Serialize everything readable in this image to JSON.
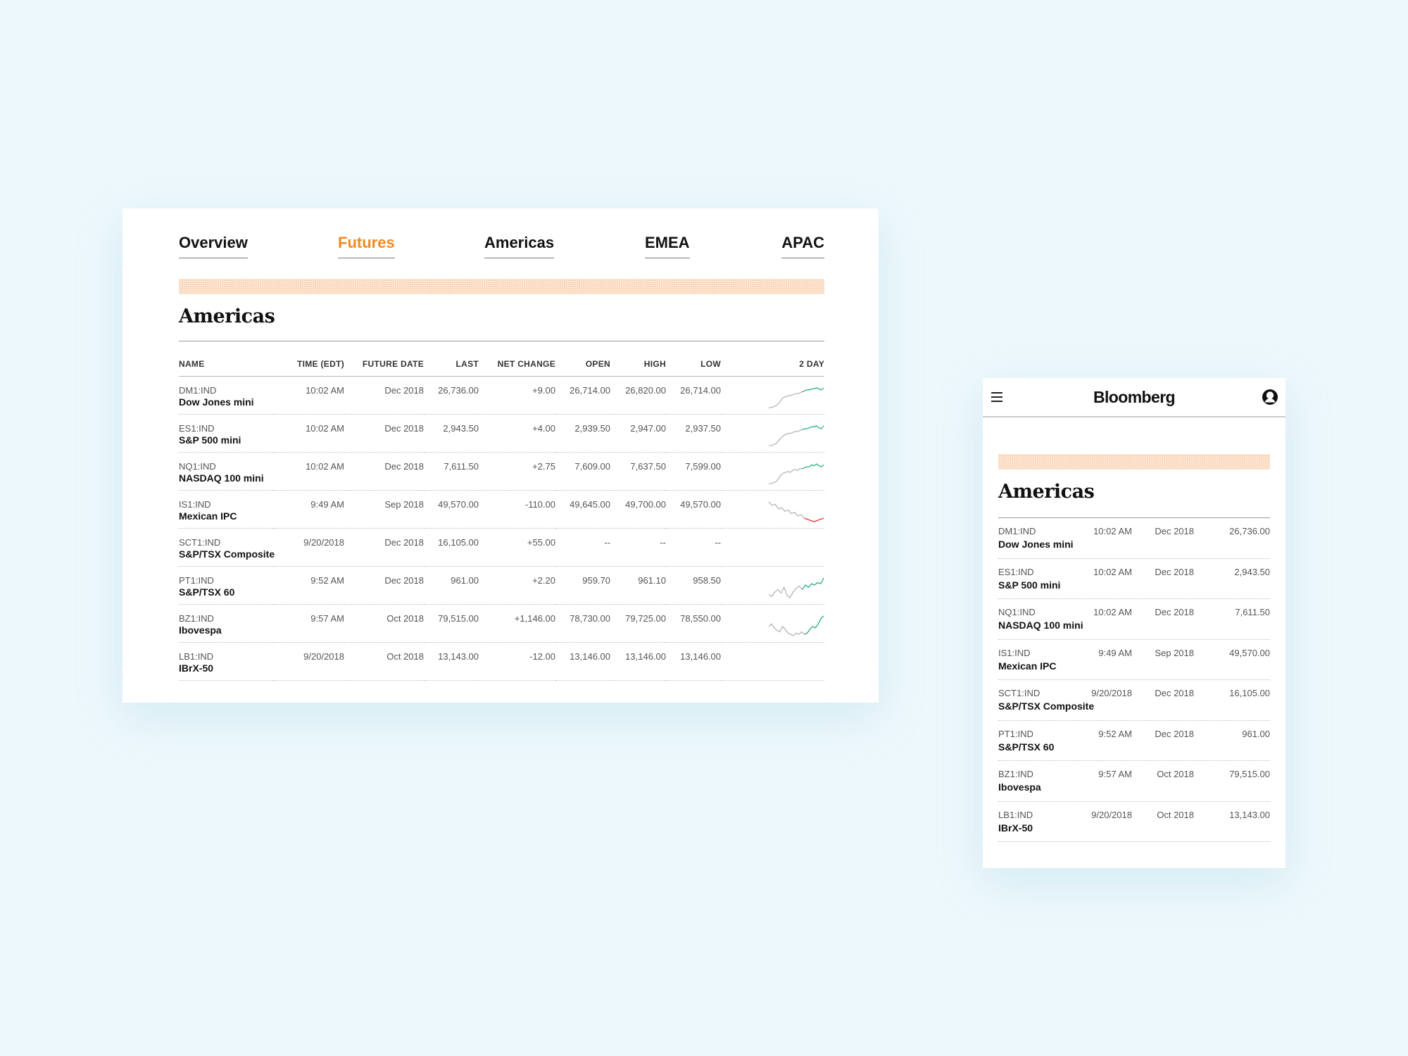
{
  "desktop": {
    "tabs": [
      {
        "label": "Overview",
        "active": false
      },
      {
        "label": "Futures",
        "active": true
      },
      {
        "label": "Americas",
        "active": false
      },
      {
        "label": "EMEA",
        "active": false
      },
      {
        "label": "APAC",
        "active": false
      }
    ],
    "section_title": "Americas",
    "columns": {
      "name": "NAME",
      "time": "TIME (EDT)",
      "future_date": "FUTURE DATE",
      "last": "LAST",
      "net_change": "NET CHANGE",
      "open": "OPEN",
      "high": "HIGH",
      "low": "LOW",
      "chart": "2 DAY"
    },
    "rows": [
      {
        "ticker": "DM1:IND",
        "name": "Dow Jones mini",
        "time": "10:02 AM",
        "future_date": "Dec 2018",
        "last": "26,736.00",
        "net_change": "+9.00",
        "open": "26,714.00",
        "high": "26,820.00",
        "low": "26,714.00",
        "trend": "up",
        "chart": [
          2,
          2,
          3,
          4,
          6,
          9,
          12,
          13,
          14,
          14,
          15,
          16,
          16,
          17,
          18,
          19,
          20,
          20,
          21,
          21,
          22,
          21,
          20,
          22
        ]
      },
      {
        "ticker": "ES1:IND",
        "name": "S&P 500 mini",
        "time": "10:02 AM",
        "future_date": "Dec 2018",
        "last": "2,943.50",
        "net_change": "+4.00",
        "open": "2,939.50",
        "high": "2,947.00",
        "low": "2,937.50",
        "trend": "up",
        "chart": [
          2,
          2,
          3,
          4,
          7,
          10,
          12,
          14,
          15,
          15,
          16,
          17,
          17,
          18,
          19,
          20,
          20,
          21,
          22,
          22,
          23,
          21,
          20,
          23
        ]
      },
      {
        "ticker": "NQ1:IND",
        "name": "NASDAQ 100 mini",
        "time": "10:02 AM",
        "future_date": "Dec 2018",
        "last": "7,611.50",
        "net_change": "+2.75",
        "open": "7,609.00",
        "high": "7,637.50",
        "low": "7,599.00",
        "trend": "up",
        "chart": [
          2,
          2,
          3,
          4,
          7,
          11,
          13,
          14,
          15,
          14,
          16,
          17,
          16,
          18,
          18,
          19,
          20,
          20,
          22,
          21,
          23,
          21,
          20,
          22
        ]
      },
      {
        "ticker": "IS1:IND",
        "name": "Mexican IPC",
        "time": "9:49 AM",
        "future_date": "Sep 2018",
        "last": "49,570.00",
        "net_change": "-110.00",
        "open": "49,645.00",
        "high": "49,700.00",
        "low": "49,570.00",
        "trend": "down",
        "chart": [
          22,
          19,
          20,
          16,
          17,
          14,
          15,
          12,
          13,
          10,
          11,
          8,
          7,
          6,
          5,
          6,
          7,
          8
        ]
      },
      {
        "ticker": "SCT1:IND",
        "name": "S&P/TSX Composite",
        "time": "9/20/2018",
        "future_date": "Dec 2018",
        "last": "16,105.00",
        "net_change": "+55.00",
        "open": "--",
        "high": "--",
        "low": "--",
        "trend": "none",
        "chart": []
      },
      {
        "ticker": "PT1:IND",
        "name": "S&P/TSX 60",
        "time": "9:52 AM",
        "future_date": "Dec 2018",
        "last": "961.00",
        "net_change": "+2.20",
        "open": "959.70",
        "high": "961.10",
        "low": "958.50",
        "trend": "up",
        "chart": [
          8,
          6,
          10,
          12,
          9,
          14,
          7,
          5,
          10,
          13,
          15,
          12,
          16,
          14,
          17,
          16,
          18,
          17,
          22
        ]
      },
      {
        "ticker": "BZ1:IND",
        "name": "Ibovespa",
        "time": "9:57 AM",
        "future_date": "Oct 2018",
        "last": "79,515.00",
        "net_change": "+1,146.00",
        "open": "78,730.00",
        "high": "79,725.00",
        "low": "78,550.00",
        "trend": "up",
        "chart": [
          12,
          14,
          11,
          9,
          8,
          12,
          10,
          7,
          6,
          5,
          7,
          6,
          8,
          6,
          7,
          10,
          12,
          11,
          14,
          18,
          20
        ]
      },
      {
        "ticker": "LB1:IND",
        "name": "IBrX-50",
        "time": "9/20/2018",
        "future_date": "Oct 2018",
        "last": "13,143.00",
        "net_change": "-12.00",
        "open": "13,146.00",
        "high": "13,146.00",
        "low": "13,146.00",
        "trend": "none",
        "chart": []
      }
    ]
  },
  "mobile": {
    "brand": "Bloomberg",
    "section_title": "Americas",
    "rows": [
      {
        "ticker": "DM1:IND",
        "name": "Dow Jones mini",
        "time": "10:02 AM",
        "future_date": "Dec 2018",
        "last": "26,736.00"
      },
      {
        "ticker": "ES1:IND",
        "name": "S&P 500 mini",
        "time": "10:02 AM",
        "future_date": "Dec 2018",
        "last": "2,943.50"
      },
      {
        "ticker": "NQ1:IND",
        "name": "NASDAQ 100 mini",
        "time": "10:02 AM",
        "future_date": "Dec 2018",
        "last": "7,611.50"
      },
      {
        "ticker": "IS1:IND",
        "name": "Mexican IPC",
        "time": "9:49 AM",
        "future_date": "Sep 2018",
        "last": "49,570.00"
      },
      {
        "ticker": "SCT1:IND",
        "name": "S&P/TSX Composite",
        "time": "9/20/2018",
        "future_date": "Dec 2018",
        "last": "16,105.00"
      },
      {
        "ticker": "PT1:IND",
        "name": "S&P/TSX 60",
        "time": "9:52 AM",
        "future_date": "Dec 2018",
        "last": "961.00"
      },
      {
        "ticker": "BZ1:IND",
        "name": "Ibovespa",
        "time": "9:57 AM",
        "future_date": "Oct 2018",
        "last": "79,515.00"
      },
      {
        "ticker": "LB1:IND",
        "name": "IBrX-50",
        "time": "9/20/2018",
        "future_date": "Oct 2018",
        "last": "13,143.00"
      }
    ]
  },
  "colors": {
    "accent": "#f08a24",
    "positive": "#27b07a",
    "negative": "#e0322f",
    "stripe": "#fbd6b8",
    "background": "#edf8fc"
  },
  "icons": {
    "menu": "hamburger-menu-icon",
    "user": "user-account-icon"
  }
}
